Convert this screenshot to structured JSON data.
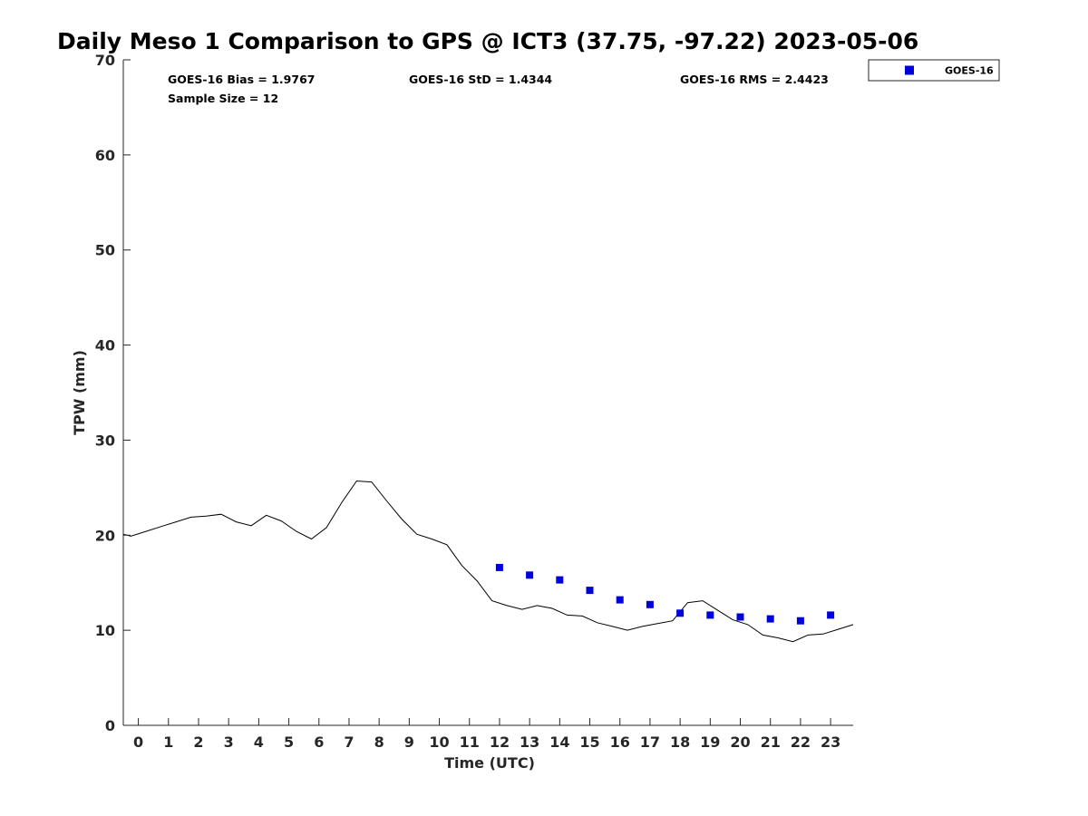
{
  "chart_data": {
    "type": "scatter",
    "title": "Daily Meso 1 Comparison to GPS @ ICT3 (37.75, -97.22) 2023-05-06",
    "xlabel": "Time (UTC)",
    "ylabel": "TPW (mm)",
    "xlim": [
      -0.5,
      23.75
    ],
    "ylim": [
      0,
      70
    ],
    "xticks": [
      0,
      1,
      2,
      3,
      4,
      5,
      6,
      7,
      8,
      9,
      10,
      11,
      12,
      13,
      14,
      15,
      16,
      17,
      18,
      19,
      20,
      21,
      22,
      23
    ],
    "yticks": [
      0,
      10,
      20,
      30,
      40,
      50,
      60,
      70
    ],
    "grid": false,
    "legend_position": "top-right-outside",
    "stats": {
      "bias": "GOES-16 Bias = 1.9767",
      "std": "GOES-16 StD = 1.4344",
      "rms": "GOES-16 RMS = 2.4423",
      "sample_size": "Sample Size = 12"
    },
    "series": [
      {
        "name": "",
        "kind": "line",
        "color": "#000000",
        "x": [
          -0.5,
          -0.25,
          0.25,
          0.75,
          1.25,
          1.75,
          2.25,
          2.75,
          3.25,
          3.75,
          4.25,
          4.75,
          5.25,
          5.75,
          6.25,
          6.75,
          7.25,
          7.75,
          8.25,
          8.75,
          9.25,
          9.75,
          10.25,
          10.75,
          11.25,
          11.75,
          12.25,
          12.75,
          13.25,
          13.75,
          14.25,
          14.75,
          15.25,
          15.75,
          16.25,
          16.75,
          17.25,
          17.75,
          18.25,
          18.75,
          19.25,
          19.75,
          20.25,
          20.75,
          21.25,
          21.75,
          22.25,
          22.75,
          23.25,
          23.75
        ],
        "y": [
          20.1,
          19.9,
          20.4,
          20.9,
          21.4,
          21.9,
          22.0,
          22.2,
          21.4,
          21.0,
          22.1,
          21.5,
          20.4,
          19.6,
          20.8,
          23.4,
          25.7,
          25.6,
          23.6,
          21.7,
          20.1,
          19.6,
          19.0,
          16.8,
          15.2,
          13.1,
          12.6,
          12.2,
          12.6,
          12.3,
          11.6,
          11.5,
          10.8,
          10.4,
          10.0,
          10.4,
          10.7,
          11.0,
          12.9,
          13.1,
          12.1,
          11.1,
          10.6,
          9.5,
          9.2,
          8.8,
          9.5,
          9.6,
          10.1,
          10.6
        ]
      },
      {
        "name": "GOES-16",
        "kind": "scatter",
        "marker": "square",
        "color": "#0000dd",
        "x": [
          12,
          13,
          14,
          15,
          16,
          17,
          18,
          19,
          20,
          21,
          22,
          23
        ],
        "y": [
          16.6,
          15.8,
          15.3,
          14.2,
          13.2,
          12.7,
          11.8,
          11.6,
          11.4,
          11.2,
          11.0,
          11.6
        ]
      }
    ]
  }
}
